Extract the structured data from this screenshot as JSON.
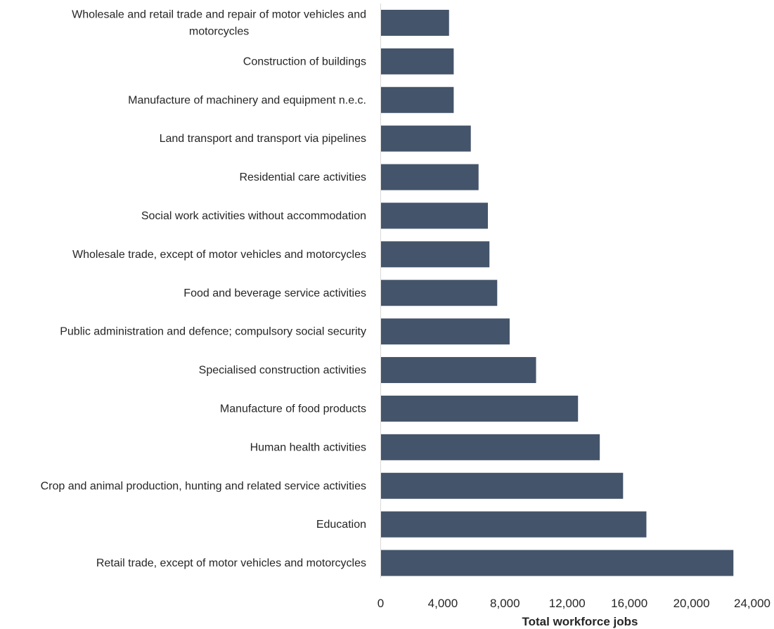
{
  "chart_data": {
    "type": "bar",
    "orientation": "horizontal",
    "categories": [
      "Wholesale and retail trade and repair of motor vehicles and motorcycles",
      "Construction of buildings",
      "Manufacture of machinery and equipment n.e.c.",
      "Land transport and transport via pipelines",
      "Residential care activities",
      "Social work activities without accommodation",
      "Wholesale trade, except of motor vehicles and motorcycles",
      "Food and beverage service activities",
      "Public administration and defence; compulsory social security",
      "Specialised construction activities",
      "Manufacture of food products",
      "Human health activities",
      "Crop and animal production, hunting and related service activities",
      "Education",
      "Retail trade, except of motor vehicles and motorcycles"
    ],
    "values": [
      4400,
      4700,
      4700,
      5800,
      6300,
      6900,
      7000,
      7500,
      8300,
      10000,
      12700,
      14100,
      15600,
      17100,
      22700
    ],
    "xlabel": "Total workforce jobs",
    "ylabel": "",
    "xlim": [
      0,
      24000
    ],
    "xticks": [
      0,
      4000,
      8000,
      12000,
      16000,
      20000,
      24000
    ],
    "xtick_labels": [
      "0",
      "4,000",
      "8,000",
      "12,000",
      "16,000",
      "20,000",
      "24,000"
    ],
    "grid": false,
    "legend": "none",
    "bar_color": "#44546a",
    "axis_color": "#d9d9d9"
  }
}
